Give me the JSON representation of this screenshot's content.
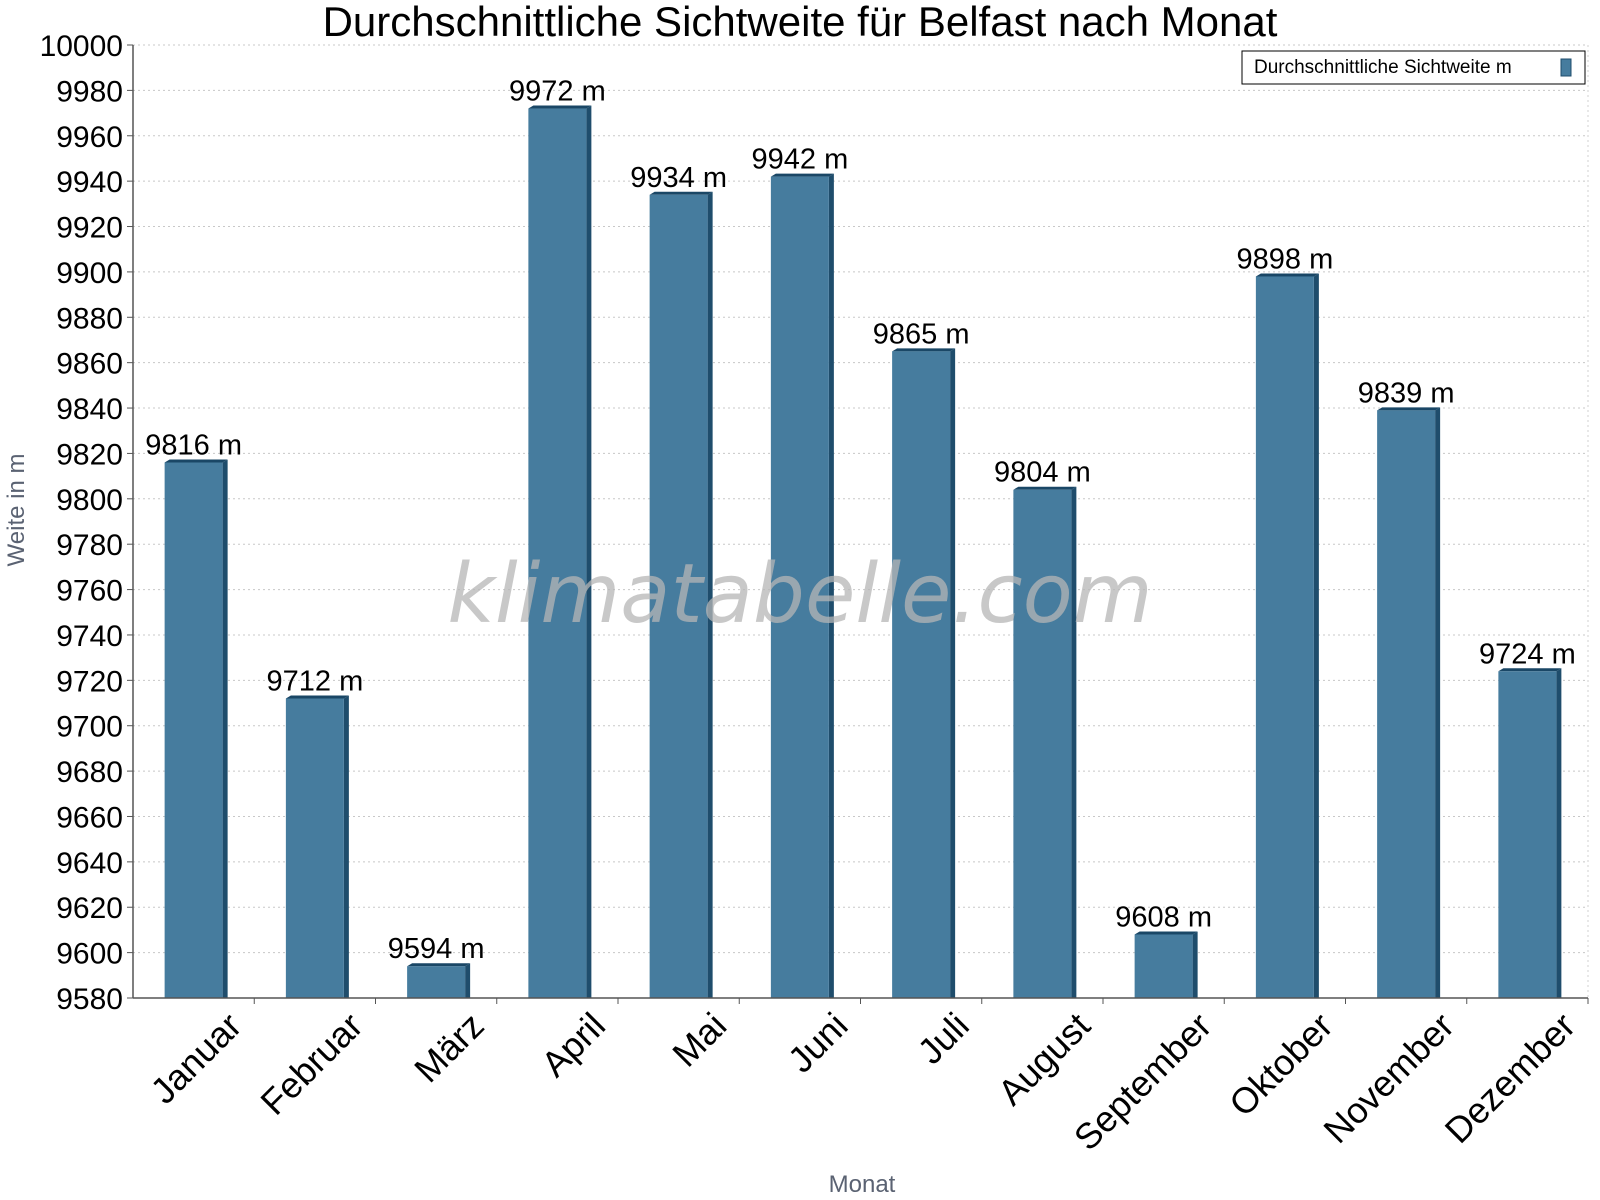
{
  "watermark": "klimatabelle.com",
  "chart_data": {
    "type": "bar",
    "title": "Durchschnittliche Sichtweite für Belfast nach Monat",
    "xlabel": "Monat",
    "ylabel": "Weite in m",
    "ylim": [
      9580,
      10000
    ],
    "ytick_step": 20,
    "grid": true,
    "legend_position": "top-right",
    "categories": [
      "Januar",
      "Februar",
      "März",
      "April",
      "Mai",
      "Juni",
      "Juli",
      "August",
      "September",
      "Oktober",
      "November",
      "Dezember"
    ],
    "series": [
      {
        "name": "Durchschnittliche Sichtweite m",
        "color": "#467c9e",
        "values": [
          9816,
          9712,
          9594,
          9972,
          9934,
          9942,
          9865,
          9804,
          9608,
          9898,
          9839,
          9724
        ],
        "labels": [
          "9816 m",
          "9712 m",
          "9594 m",
          "9972 m",
          "9934 m",
          "9942 m",
          "9865 m",
          "9804 m",
          "9608 m",
          "9898 m",
          "9839 m",
          "9724 m"
        ]
      }
    ]
  }
}
